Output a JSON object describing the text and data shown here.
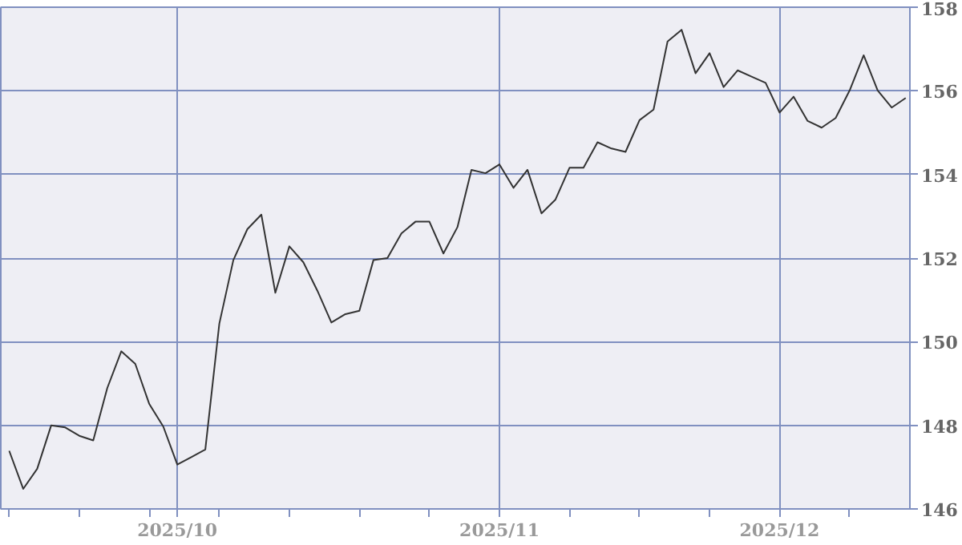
{
  "chart_data": {
    "type": "line",
    "categories": [
      null,
      null,
      null,
      null,
      null,
      null,
      null,
      null,
      null,
      null,
      null,
      null,
      "2025/10",
      null,
      null,
      null,
      null,
      null,
      null,
      null,
      null,
      null,
      null,
      null,
      null,
      null,
      null,
      null,
      null,
      null,
      null,
      null,
      null,
      null,
      null,
      "2025/11",
      null,
      null,
      null,
      null,
      null,
      null,
      null,
      null,
      null,
      null,
      null,
      null,
      null,
      null,
      null,
      null,
      null,
      null,
      null,
      "2025/12",
      null,
      null,
      null,
      null,
      null,
      null,
      null,
      null,
      null
    ],
    "series": [
      {
        "color": "#333333",
        "values": [
          147.39,
          146.48,
          146.96,
          148.0,
          147.95,
          147.75,
          147.64,
          148.89,
          149.77,
          149.47,
          148.51,
          147.97,
          147.06,
          147.24,
          147.42,
          150.43,
          151.95,
          152.69,
          153.04,
          151.17,
          152.28,
          151.9,
          151.22,
          150.46,
          150.66,
          150.74,
          151.95,
          152.0,
          152.59,
          152.87,
          152.87,
          152.11,
          152.74,
          154.11,
          154.03,
          154.24,
          153.68,
          154.11,
          153.07,
          153.4,
          154.16,
          154.16,
          154.77,
          154.62,
          154.54,
          155.3,
          155.55,
          157.18,
          157.46,
          156.42,
          156.9,
          156.09,
          156.49,
          156.34,
          156.19,
          155.48,
          155.86,
          155.28,
          155.12,
          155.35,
          156.01,
          156.85,
          156.01,
          155.6,
          155.83
        ]
      }
    ],
    "ylim": [
      146,
      158
    ],
    "yticks": [
      146,
      148,
      150,
      152,
      154,
      156,
      158
    ],
    "grid": true,
    "marker": "none",
    "line_style": "solid"
  }
}
